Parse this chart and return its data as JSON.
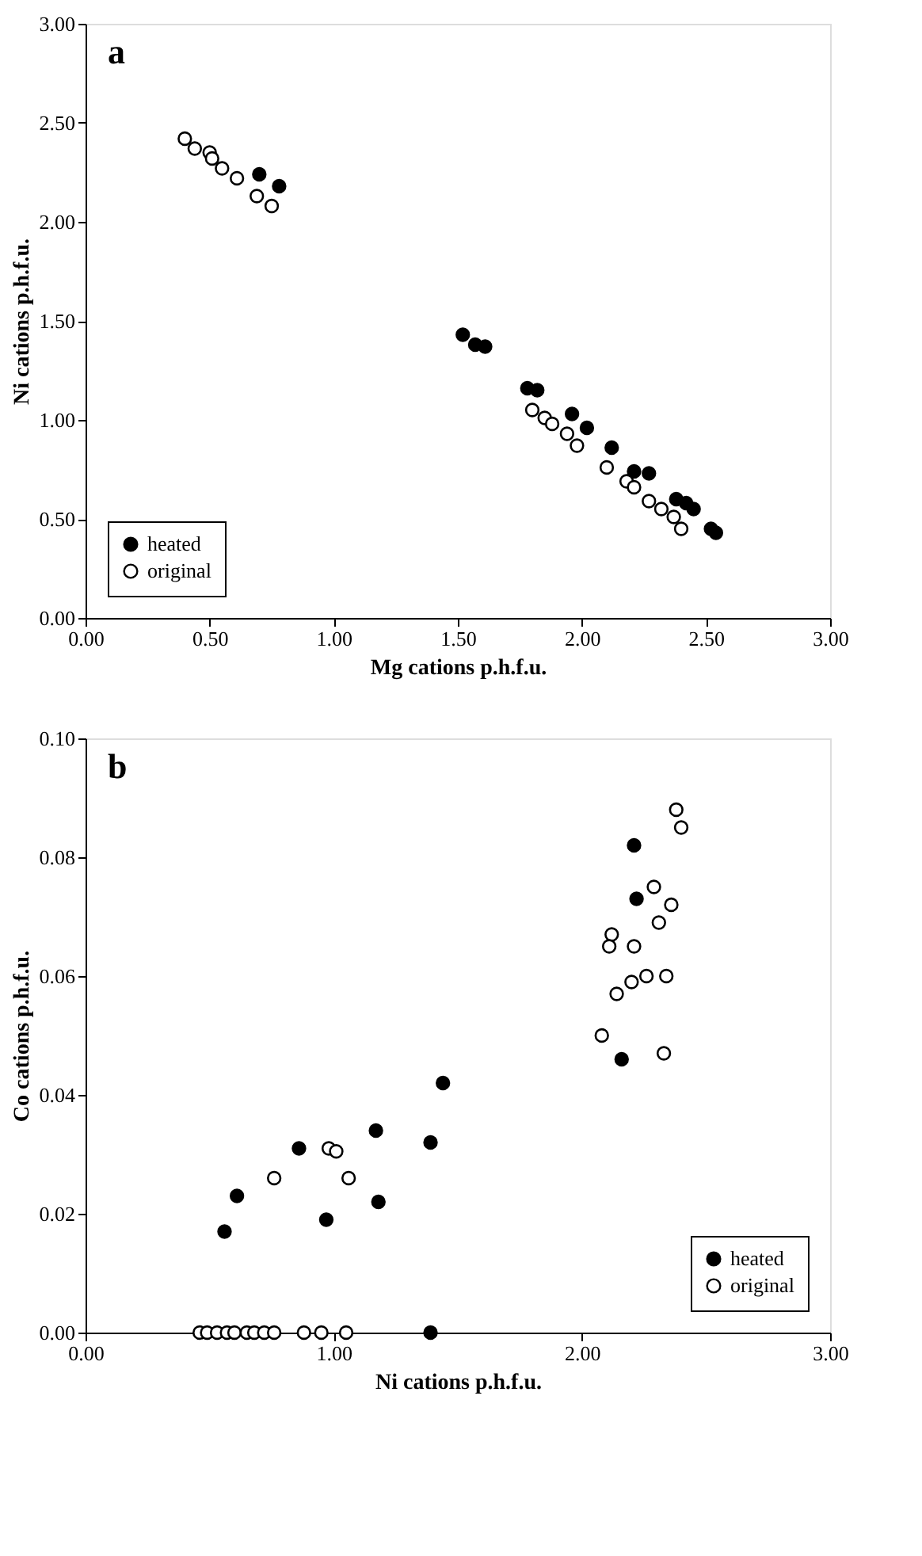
{
  "chart_data": [
    {
      "type": "scatter",
      "xlabel": "Mg cations p.h.f.u.",
      "ylabel": "Ni cations p.h.f.u.",
      "annotations": [
        "a"
      ],
      "xlim": [
        0,
        3
      ],
      "xticks": [
        {
          "value": 0,
          "label": "0.00"
        },
        {
          "value": 0.5,
          "label": "0.50"
        },
        {
          "value": 1,
          "label": "1.00"
        },
        {
          "value": 1.5,
          "label": "1.50"
        },
        {
          "value": 2,
          "label": "2.00"
        },
        {
          "value": 2.5,
          "label": "2.50"
        },
        {
          "value": 3,
          "label": "3.00"
        }
      ],
      "ylim": [
        0,
        3
      ],
      "yticks": [
        {
          "value": 0,
          "label": "0.00"
        },
        {
          "value": 0.5,
          "label": "0.50"
        },
        {
          "value": 1,
          "label": "1.00"
        },
        {
          "value": 1.5,
          "label": "1.50"
        },
        {
          "value": 2,
          "label": "2.00"
        },
        {
          "value": 2.5,
          "label": "2.50"
        },
        {
          "value": 3,
          "label": "3.00"
        }
      ],
      "grid": false,
      "legend": "bottom left",
      "marker": "circle",
      "series": [
        {
          "name": "heated",
          "color": "#000000",
          "x": [
            0.7,
            0.78,
            1.52,
            1.57,
            1.61,
            1.78,
            1.82,
            1.96,
            2.02,
            2.12,
            2.21,
            2.27,
            2.38,
            2.42,
            2.45,
            2.52,
            2.54
          ],
          "values": [
            2.24,
            2.18,
            1.43,
            1.38,
            1.37,
            1.16,
            1.15,
            1.03,
            0.96,
            0.86,
            0.74,
            0.73,
            0.6,
            0.58,
            0.55,
            0.45,
            0.43
          ]
        },
        {
          "name": "original",
          "color": "#ffffff",
          "x": [
            0.4,
            0.44,
            0.5,
            0.51,
            0.55,
            0.61,
            0.69,
            0.75,
            1.8,
            1.85,
            1.88,
            1.94,
            1.98,
            2.1,
            2.18,
            2.21,
            2.27,
            2.32,
            2.37,
            2.4
          ],
          "values": [
            2.42,
            2.37,
            2.35,
            2.32,
            2.27,
            2.22,
            2.13,
            2.08,
            1.05,
            1.01,
            0.98,
            0.93,
            0.87,
            0.76,
            0.69,
            0.66,
            0.59,
            0.55,
            0.51,
            0.45
          ]
        }
      ]
    },
    {
      "type": "scatter",
      "xlabel": "Ni cations p.h.f.u.",
      "ylabel": "Co cations p.h.f.u.",
      "annotations": [
        "b"
      ],
      "xlim": [
        0,
        3
      ],
      "xticks": [
        {
          "value": 0,
          "label": "0.00"
        },
        {
          "value": 1,
          "label": "1.00"
        },
        {
          "value": 2,
          "label": "2.00"
        },
        {
          "value": 3,
          "label": "3.00"
        }
      ],
      "ylim": [
        0,
        0.1
      ],
      "yticks": [
        {
          "value": 0,
          "label": "0.00"
        },
        {
          "value": 0.02,
          "label": "0.02"
        },
        {
          "value": 0.04,
          "label": "0.04"
        },
        {
          "value": 0.06,
          "label": "0.06"
        },
        {
          "value": 0.08,
          "label": "0.08"
        },
        {
          "value": 0.1,
          "label": "0.10"
        }
      ],
      "grid": false,
      "legend": "bottom right",
      "marker": "circle",
      "series": [
        {
          "name": "heated",
          "color": "#000000",
          "x": [
            0.56,
            0.61,
            0.86,
            0.97,
            1.17,
            1.18,
            1.39,
            1.44,
            1.39,
            2.21,
            2.22,
            2.16
          ],
          "values": [
            0.017,
            0.023,
            0.031,
            0.019,
            0.034,
            0.022,
            0.032,
            0.042,
            0,
            0.082,
            0.073,
            0.046
          ]
        },
        {
          "name": "original",
          "color": "#ffffff",
          "x": [
            0.76,
            0.98,
            1.01,
            1.06,
            0.46,
            0.49,
            0.53,
            0.57,
            0.6,
            0.65,
            0.68,
            0.72,
            0.76,
            0.88,
            0.95,
            1.05,
            2.38,
            2.4,
            2.29,
            2.36,
            2.31,
            2.12,
            2.11,
            2.21,
            2.26,
            2.2,
            2.34,
            2.14,
            2.08,
            2.33
          ],
          "values": [
            0.026,
            0.031,
            0.0305,
            0.026,
            0,
            0,
            0,
            0,
            0,
            0,
            0,
            0,
            0,
            0,
            0,
            0,
            0.088,
            0.085,
            0.075,
            0.072,
            0.069,
            0.067,
            0.065,
            0.065,
            0.06,
            0.059,
            0.06,
            0.057,
            0.05,
            0.047
          ]
        }
      ]
    }
  ]
}
